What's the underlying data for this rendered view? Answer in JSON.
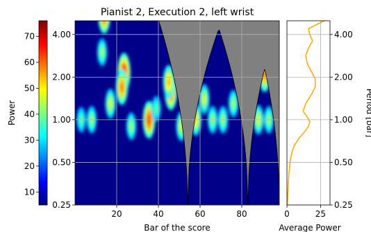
{
  "chart_data": [
    {
      "type": "heatmap",
      "title": "Pianist 2, Execution 2, left wrist",
      "xlabel": "Bar of the score",
      "ylabel": "",
      "xlim": [
        0,
        98
      ],
      "x_ticks": [
        "20",
        "40",
        "60",
        "80"
      ],
      "x_tick_values": [
        20,
        40,
        60,
        80
      ],
      "y_scale": "log2",
      "ylim": [
        0.25,
        5.0
      ],
      "y_ticks": [
        "4.00",
        "2.00",
        "1.00",
        "0.50",
        "0.25"
      ],
      "y_tick_values": [
        4,
        2,
        1,
        0.5,
        0.25
      ],
      "grid": true,
      "colormap": "jet",
      "cone_of_influence_color": "#808080",
      "cone_of_influence": {
        "left_edge_bar": 0,
        "right_edge_bar": 98,
        "peak_1": {
          "bar": 69,
          "period": 4.4
        },
        "gaps_at_bar": [
          54,
          83
        ],
        "peak_2": {
          "bar": 91,
          "period": 2.3
        }
      },
      "hotspots": [
        {
          "bar": 23.5,
          "period": 2.15,
          "power": 65
        },
        {
          "bar": 22.5,
          "period": 1.7,
          "power": 55
        },
        {
          "bar": 14,
          "period": 5.5,
          "power": 60
        },
        {
          "bar": 35.5,
          "period": 1.0,
          "power": 60
        },
        {
          "bar": 46,
          "period": 1.6,
          "power": 62
        },
        {
          "bar": 45,
          "period": 1.85,
          "power": 50
        },
        {
          "bar": 91,
          "period": 2.1,
          "power": 55
        },
        {
          "bar": 8,
          "period": 1.0,
          "power": 35
        },
        {
          "bar": 3,
          "period": 1.0,
          "power": 30
        },
        {
          "bar": 17,
          "period": 1.3,
          "power": 40
        },
        {
          "bar": 27,
          "period": 0.9,
          "power": 35
        },
        {
          "bar": 51,
          "period": 0.9,
          "power": 40
        },
        {
          "bar": 58,
          "period": 1.0,
          "power": 45
        },
        {
          "bar": 62,
          "period": 1.4,
          "power": 40
        },
        {
          "bar": 66,
          "period": 1.0,
          "power": 35
        },
        {
          "bar": 71,
          "period": 1.0,
          "power": 35
        },
        {
          "bar": 76,
          "period": 1.3,
          "power": 35
        },
        {
          "bar": 88,
          "period": 1.0,
          "power": 40
        },
        {
          "bar": 93,
          "period": 1.0,
          "power": 35
        },
        {
          "bar": 13,
          "period": 3.0,
          "power": 35
        },
        {
          "bar": 39,
          "period": 1.2,
          "power": 30
        }
      ]
    },
    {
      "type": "line",
      "xlabel": "Average Power",
      "ylabel": "Period [bar]",
      "xlim": [
        0,
        32
      ],
      "x_ticks": [
        "0",
        "25"
      ],
      "x_tick_values": [
        0,
        25
      ],
      "y_scale": "log2",
      "ylim": [
        0.25,
        5.0
      ],
      "y_ticks": [
        "4.00",
        "2.00",
        "1.00",
        "0.50",
        "0.25"
      ],
      "y_tick_values": [
        4,
        2,
        1,
        0.5,
        0.25
      ],
      "grid": true,
      "line_color": "#ffa500",
      "points": [
        {
          "period": 0.25,
          "avg_power": 0.3
        },
        {
          "period": 0.3,
          "avg_power": 0.6
        },
        {
          "period": 0.36,
          "avg_power": 1.1
        },
        {
          "period": 0.43,
          "avg_power": 1.6
        },
        {
          "period": 0.5,
          "avg_power": 2.3
        },
        {
          "period": 0.58,
          "avg_power": 3.5
        },
        {
          "period": 0.66,
          "avg_power": 5.5
        },
        {
          "period": 0.74,
          "avg_power": 9
        },
        {
          "period": 0.82,
          "avg_power": 13
        },
        {
          "period": 0.9,
          "avg_power": 16
        },
        {
          "period": 0.97,
          "avg_power": 17
        },
        {
          "period": 1.05,
          "avg_power": 15
        },
        {
          "period": 1.15,
          "avg_power": 12
        },
        {
          "period": 1.3,
          "avg_power": 14
        },
        {
          "period": 1.5,
          "avg_power": 18
        },
        {
          "period": 1.7,
          "avg_power": 21
        },
        {
          "period": 1.95,
          "avg_power": 21
        },
        {
          "period": 2.2,
          "avg_power": 18
        },
        {
          "period": 2.5,
          "avg_power": 15
        },
        {
          "period": 2.85,
          "avg_power": 14
        },
        {
          "period": 3.2,
          "avg_power": 16
        },
        {
          "period": 3.6,
          "avg_power": 19
        },
        {
          "period": 4.0,
          "avg_power": 17
        },
        {
          "period": 4.4,
          "avg_power": 16
        },
        {
          "period": 4.8,
          "avg_power": 24
        },
        {
          "period": 5.0,
          "avg_power": 28
        }
      ]
    },
    {
      "type": "colorbar",
      "label": "Power",
      "colormap": "jet",
      "range": [
        5,
        76
      ],
      "ticks": [
        "10",
        "20",
        "30",
        "40",
        "50",
        "60",
        "70"
      ],
      "tick_values": [
        10,
        20,
        30,
        40,
        50,
        60,
        70
      ]
    }
  ]
}
